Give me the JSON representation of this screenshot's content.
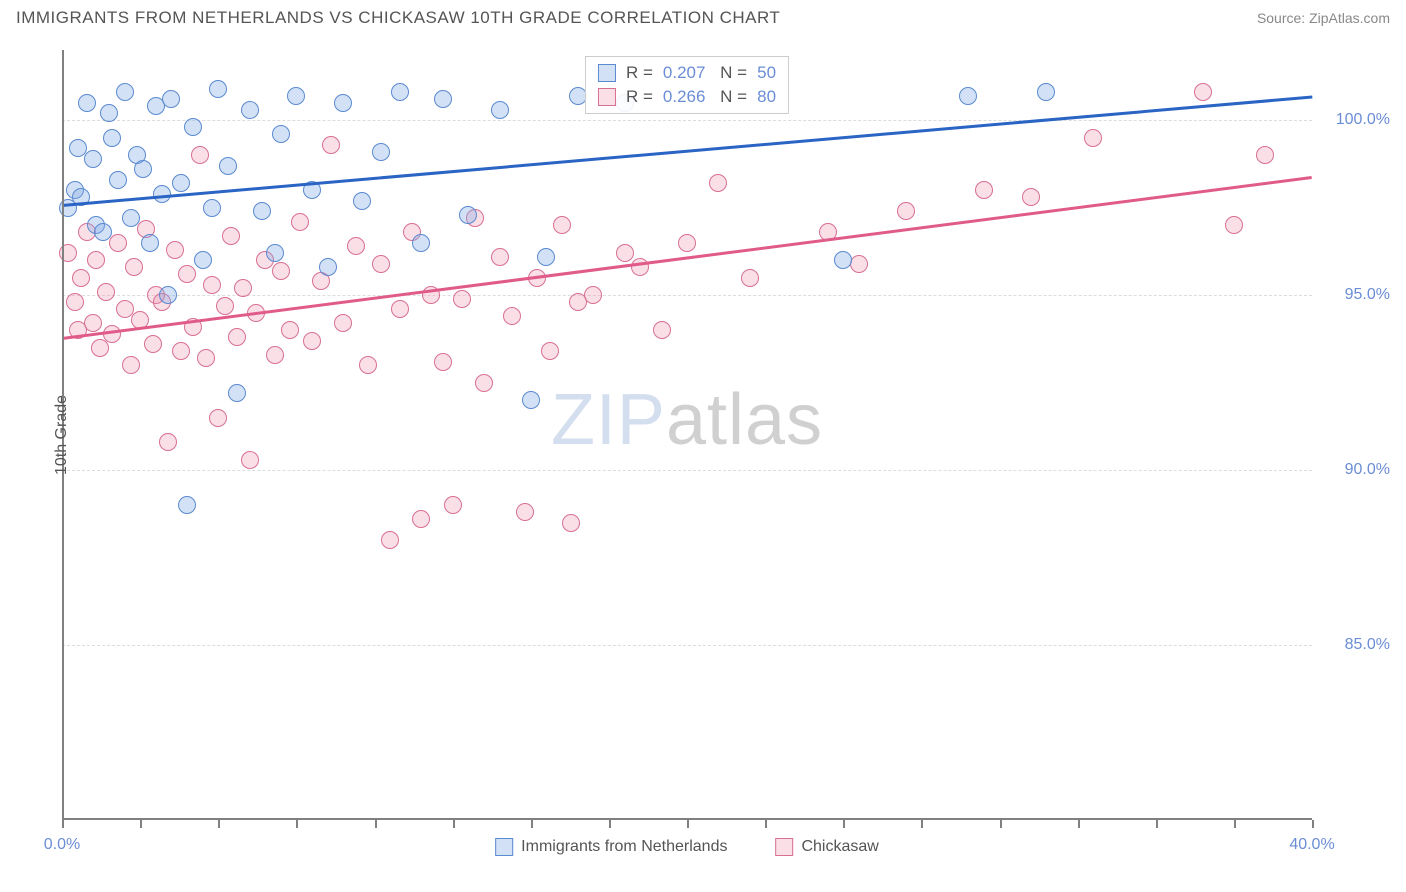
{
  "header": {
    "title": "IMMIGRANTS FROM NETHERLANDS VS CHICKASAW 10TH GRADE CORRELATION CHART",
    "source": "Source: ZipAtlas.com"
  },
  "chart": {
    "type": "scatter",
    "ylabel": "10th Grade",
    "xlim": [
      0,
      40
    ],
    "ylim": [
      80,
      102
    ],
    "yticks": [
      {
        "v": 85.0,
        "label": "85.0%"
      },
      {
        "v": 90.0,
        "label": "90.0%"
      },
      {
        "v": 95.0,
        "label": "95.0%"
      },
      {
        "v": 100.0,
        "label": "100.0%"
      }
    ],
    "xticks_minor": [
      0,
      2.5,
      5,
      7.5,
      10,
      12.5,
      15,
      17.5,
      20,
      22.5,
      25,
      27.5,
      30,
      32.5,
      35,
      37.5,
      40
    ],
    "xticks_label": [
      {
        "v": 0,
        "label": "0.0%"
      },
      {
        "v": 40,
        "label": "40.0%"
      }
    ],
    "background_color": "#ffffff",
    "grid_color": "#dcdcdc",
    "axis_color": "#808080",
    "point_radius": 9,
    "series": {
      "netherlands": {
        "label": "Immigrants from Netherlands",
        "fill": "rgba(130,170,230,0.35)",
        "stroke": "#5a8ad0",
        "line_color": "#2a64c4",
        "r": "0.207",
        "n": "50",
        "reg_y_at_xmin": 97.6,
        "reg_y_at_xmax": 100.7,
        "points": [
          [
            0.2,
            97.5
          ],
          [
            0.4,
            98.0
          ],
          [
            0.5,
            99.2
          ],
          [
            0.6,
            97.8
          ],
          [
            0.8,
            100.5
          ],
          [
            1.0,
            98.9
          ],
          [
            1.1,
            97.0
          ],
          [
            1.3,
            96.8
          ],
          [
            1.5,
            100.2
          ],
          [
            1.6,
            99.5
          ],
          [
            1.8,
            98.3
          ],
          [
            2.0,
            100.8
          ],
          [
            2.2,
            97.2
          ],
          [
            2.4,
            99.0
          ],
          [
            2.6,
            98.6
          ],
          [
            2.8,
            96.5
          ],
          [
            3.0,
            100.4
          ],
          [
            3.2,
            97.9
          ],
          [
            3.4,
            95.0
          ],
          [
            3.5,
            100.6
          ],
          [
            3.8,
            98.2
          ],
          [
            4.0,
            89.0
          ],
          [
            4.2,
            99.8
          ],
          [
            4.5,
            96.0
          ],
          [
            4.8,
            97.5
          ],
          [
            5.0,
            100.9
          ],
          [
            5.3,
            98.7
          ],
          [
            5.6,
            92.2
          ],
          [
            6.0,
            100.3
          ],
          [
            6.4,
            97.4
          ],
          [
            6.8,
            96.2
          ],
          [
            7.0,
            99.6
          ],
          [
            7.5,
            100.7
          ],
          [
            8.0,
            98.0
          ],
          [
            8.5,
            95.8
          ],
          [
            9.0,
            100.5
          ],
          [
            9.6,
            97.7
          ],
          [
            10.2,
            99.1
          ],
          [
            10.8,
            100.8
          ],
          [
            11.5,
            96.5
          ],
          [
            12.2,
            100.6
          ],
          [
            13.0,
            97.3
          ],
          [
            14.0,
            100.3
          ],
          [
            15.0,
            92.0
          ],
          [
            15.5,
            96.1
          ],
          [
            16.5,
            100.7
          ],
          [
            18.0,
            100.5
          ],
          [
            25.0,
            96.0
          ],
          [
            29.0,
            100.7
          ],
          [
            31.5,
            100.8
          ]
        ]
      },
      "chickasaw": {
        "label": "Chickasaw",
        "fill": "rgba(240,150,175,0.30)",
        "stroke": "#d86f94",
        "line_color": "#e05b8a",
        "r": "0.266",
        "n": "80",
        "reg_y_at_xmin": 93.8,
        "reg_y_at_xmax": 98.4,
        "points": [
          [
            0.2,
            96.2
          ],
          [
            0.4,
            94.8
          ],
          [
            0.5,
            94.0
          ],
          [
            0.6,
            95.5
          ],
          [
            0.8,
            96.8
          ],
          [
            1.0,
            94.2
          ],
          [
            1.1,
            96.0
          ],
          [
            1.2,
            93.5
          ],
          [
            1.4,
            95.1
          ],
          [
            1.6,
            93.9
          ],
          [
            1.8,
            96.5
          ],
          [
            2.0,
            94.6
          ],
          [
            2.2,
            93.0
          ],
          [
            2.3,
            95.8
          ],
          [
            2.5,
            94.3
          ],
          [
            2.7,
            96.9
          ],
          [
            2.9,
            93.6
          ],
          [
            3.0,
            95.0
          ],
          [
            3.2,
            94.8
          ],
          [
            3.4,
            90.8
          ],
          [
            3.6,
            96.3
          ],
          [
            3.8,
            93.4
          ],
          [
            4.0,
            95.6
          ],
          [
            4.2,
            94.1
          ],
          [
            4.4,
            99.0
          ],
          [
            4.6,
            93.2
          ],
          [
            4.8,
            95.3
          ],
          [
            5.0,
            91.5
          ],
          [
            5.2,
            94.7
          ],
          [
            5.4,
            96.7
          ],
          [
            5.6,
            93.8
          ],
          [
            5.8,
            95.2
          ],
          [
            6.0,
            90.3
          ],
          [
            6.2,
            94.5
          ],
          [
            6.5,
            96.0
          ],
          [
            6.8,
            93.3
          ],
          [
            7.0,
            95.7
          ],
          [
            7.3,
            94.0
          ],
          [
            7.6,
            97.1
          ],
          [
            8.0,
            93.7
          ],
          [
            8.3,
            95.4
          ],
          [
            8.6,
            99.3
          ],
          [
            9.0,
            94.2
          ],
          [
            9.4,
            96.4
          ],
          [
            9.8,
            93.0
          ],
          [
            10.2,
            95.9
          ],
          [
            10.5,
            88.0
          ],
          [
            10.8,
            94.6
          ],
          [
            11.2,
            96.8
          ],
          [
            11.5,
            88.6
          ],
          [
            11.8,
            95.0
          ],
          [
            12.2,
            93.1
          ],
          [
            12.5,
            89.0
          ],
          [
            12.8,
            94.9
          ],
          [
            13.2,
            97.2
          ],
          [
            13.5,
            92.5
          ],
          [
            14.0,
            96.1
          ],
          [
            14.4,
            94.4
          ],
          [
            14.8,
            88.8
          ],
          [
            15.2,
            95.5
          ],
          [
            15.6,
            93.4
          ],
          [
            16.0,
            97.0
          ],
          [
            16.3,
            88.5
          ],
          [
            16.5,
            94.8
          ],
          [
            17.0,
            95.0
          ],
          [
            18.0,
            96.2
          ],
          [
            18.5,
            95.8
          ],
          [
            19.2,
            94.0
          ],
          [
            20.0,
            96.5
          ],
          [
            21.0,
            98.2
          ],
          [
            22.0,
            95.5
          ],
          [
            24.5,
            96.8
          ],
          [
            25.5,
            95.9
          ],
          [
            27.0,
            97.4
          ],
          [
            29.5,
            98.0
          ],
          [
            31.0,
            97.8
          ],
          [
            33.0,
            99.5
          ],
          [
            36.5,
            100.8
          ],
          [
            37.5,
            97.0
          ],
          [
            38.5,
            99.0
          ]
        ]
      }
    },
    "watermark": "ZIPatlas"
  }
}
